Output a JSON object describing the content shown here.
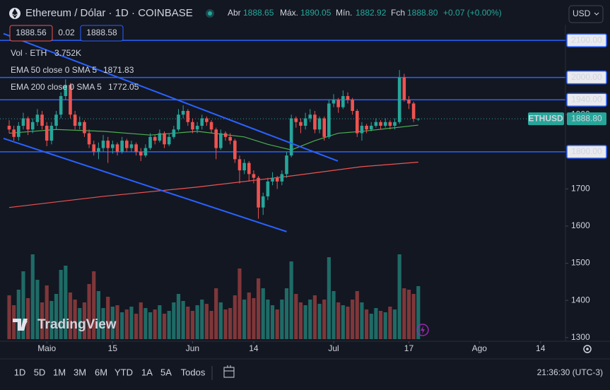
{
  "header": {
    "title": "Ethereum / Dólar · 1D · COINBASE",
    "open_label": "Abr",
    "high_label": "Máx.",
    "low_label": "Mín.",
    "close_label": "Fch",
    "close_value": "1888.80",
    "change": "+0.07 (+0.00%)",
    "currency": "USD",
    "sell": 1888.56,
    "spread": 0.02,
    "buy": 1888.58
  },
  "toolbar": {
    "ranges": [
      "1D",
      "5D",
      "1M",
      "3M",
      "6M",
      "YTD",
      "1A",
      "5A",
      "Todos"
    ],
    "time": "21:36:30 (UTC-3)"
  },
  "brand": "TradingView",
  "chart_data": {
    "type": "candlestick",
    "symbol": "ETHUSD",
    "last_label": "1888.80",
    "up_color": "#26a69a",
    "down_color": "#ef5350",
    "xlim": [
      -1.2,
      118.3
    ],
    "xticks": [
      {
        "value": 8,
        "label": "Maio"
      },
      {
        "value": 22,
        "label": "15"
      },
      {
        "value": 39,
        "label": "Jun"
      },
      {
        "value": 52,
        "label": "14"
      },
      {
        "value": 69,
        "label": "Jul"
      },
      {
        "value": 85,
        "label": "17"
      },
      {
        "value": 100,
        "label": "Ago"
      },
      {
        "value": 113,
        "label": "14"
      }
    ],
    "ylim": [
      1290,
      2142
    ],
    "yticks": [
      1300,
      1400,
      1500,
      1600,
      1700,
      1800,
      1900,
      2000,
      2100
    ],
    "grid": false,
    "ohlc": [
      [
        1870,
        1885,
        1850,
        1860
      ],
      [
        1860,
        1870,
        1830,
        1840
      ],
      [
        1840,
        1880,
        1830,
        1870
      ],
      [
        1870,
        1905,
        1860,
        1890
      ],
      [
        1890,
        1895,
        1845,
        1860
      ],
      [
        1860,
        1890,
        1850,
        1880
      ],
      [
        1880,
        1915,
        1870,
        1900
      ],
      [
        1900,
        1910,
        1860,
        1870
      ],
      [
        1870,
        1880,
        1815,
        1830
      ],
      [
        1830,
        1880,
        1820,
        1870
      ],
      [
        1870,
        1910,
        1860,
        1900
      ],
      [
        1900,
        1960,
        1890,
        1950
      ],
      [
        1950,
        1995,
        1940,
        1980
      ],
      [
        1980,
        1985,
        1890,
        1900
      ],
      [
        1900,
        1910,
        1860,
        1870
      ],
      [
        1870,
        1895,
        1860,
        1880
      ],
      [
        1880,
        1885,
        1840,
        1850
      ],
      [
        1850,
        1860,
        1810,
        1820
      ],
      [
        1820,
        1830,
        1790,
        1800
      ],
      [
        1800,
        1825,
        1780,
        1810
      ],
      [
        1810,
        1845,
        1800,
        1830
      ],
      [
        1830,
        1840,
        1770,
        1810
      ],
      [
        1810,
        1830,
        1795,
        1820
      ],
      [
        1820,
        1825,
        1790,
        1800
      ],
      [
        1800,
        1840,
        1795,
        1830
      ],
      [
        1830,
        1835,
        1800,
        1810
      ],
      [
        1810,
        1830,
        1800,
        1820
      ],
      [
        1820,
        1825,
        1790,
        1800
      ],
      [
        1800,
        1810,
        1775,
        1790
      ],
      [
        1790,
        1820,
        1785,
        1810
      ],
      [
        1810,
        1850,
        1805,
        1840
      ],
      [
        1840,
        1845,
        1820,
        1830
      ],
      [
        1830,
        1860,
        1825,
        1850
      ],
      [
        1850,
        1855,
        1810,
        1820
      ],
      [
        1820,
        1850,
        1815,
        1840
      ],
      [
        1840,
        1870,
        1835,
        1860
      ],
      [
        1860,
        1915,
        1855,
        1900
      ],
      [
        1900,
        1925,
        1890,
        1910
      ],
      [
        1910,
        1915,
        1870,
        1880
      ],
      [
        1880,
        1890,
        1850,
        1860
      ],
      [
        1860,
        1880,
        1850,
        1870
      ],
      [
        1870,
        1900,
        1860,
        1890
      ],
      [
        1890,
        1895,
        1870,
        1880
      ],
      [
        1880,
        1885,
        1850,
        1860
      ],
      [
        1860,
        1865,
        1780,
        1810
      ],
      [
        1810,
        1860,
        1805,
        1850
      ],
      [
        1850,
        1855,
        1830,
        1840
      ],
      [
        1840,
        1850,
        1820,
        1830
      ],
      [
        1830,
        1835,
        1770,
        1780
      ],
      [
        1780,
        1790,
        1715,
        1750
      ],
      [
        1750,
        1780,
        1740,
        1770
      ],
      [
        1770,
        1775,
        1720,
        1740
      ],
      [
        1740,
        1750,
        1715,
        1730
      ],
      [
        1730,
        1735,
        1620,
        1650
      ],
      [
        1650,
        1690,
        1630,
        1680
      ],
      [
        1680,
        1730,
        1670,
        1720
      ],
      [
        1720,
        1745,
        1710,
        1730
      ],
      [
        1730,
        1735,
        1700,
        1720
      ],
      [
        1720,
        1750,
        1710,
        1740
      ],
      [
        1740,
        1800,
        1730,
        1790
      ],
      [
        1790,
        1900,
        1785,
        1890
      ],
      [
        1890,
        1895,
        1865,
        1880
      ],
      [
        1880,
        1890,
        1850,
        1870
      ],
      [
        1870,
        1905,
        1860,
        1890
      ],
      [
        1890,
        1915,
        1880,
        1900
      ],
      [
        1900,
        1910,
        1850,
        1860
      ],
      [
        1860,
        1895,
        1850,
        1890
      ],
      [
        1890,
        1895,
        1830,
        1840
      ],
      [
        1840,
        1940,
        1835,
        1930
      ],
      [
        1930,
        1955,
        1920,
        1940
      ],
      [
        1940,
        1945,
        1905,
        1920
      ],
      [
        1920,
        1965,
        1915,
        1950
      ],
      [
        1950,
        1960,
        1930,
        1940
      ],
      [
        1940,
        1945,
        1900,
        1910
      ],
      [
        1910,
        1915,
        1840,
        1850
      ],
      [
        1850,
        1880,
        1830,
        1870
      ],
      [
        1870,
        1875,
        1850,
        1860
      ],
      [
        1860,
        1880,
        1855,
        1870
      ],
      [
        1870,
        1890,
        1865,
        1880
      ],
      [
        1880,
        1885,
        1860,
        1870
      ],
      [
        1870,
        1890,
        1865,
        1880
      ],
      [
        1880,
        1885,
        1860,
        1870
      ],
      [
        1870,
        1890,
        1860,
        1880
      ],
      [
        1880,
        2020,
        1875,
        2000
      ],
      [
        2000,
        2010,
        1935,
        1940
      ],
      [
        1940,
        1950,
        1915,
        1930
      ],
      [
        1930,
        1935,
        1880,
        1888.73
      ],
      [
        1888.65,
        1890.05,
        1882.92,
        1888.8
      ]
    ],
    "volume": {
      "name": "Vol · ETH",
      "value_label": "3.752K",
      "lim": [
        0,
        8
      ],
      "up_color": "#1f6b66",
      "down_color": "#7f3739",
      "values": [
        3.1,
        2.4,
        3.5,
        4.8,
        2.9,
        6.0,
        4.2,
        2.6,
        3.8,
        2.7,
        3.2,
        4.9,
        5.2,
        3.3,
        2.8,
        2.2,
        2.6,
        3.9,
        4.8,
        3.4,
        2.2,
        3.0,
        2.3,
        2.4,
        1.9,
        2.1,
        2.3,
        1.8,
        2.6,
        2.2,
        1.9,
        2.1,
        2.4,
        1.8,
        2.0,
        2.6,
        3.2,
        2.7,
        2.3,
        2.0,
        2.4,
        2.8,
        2.5,
        2.0,
        3.6,
        2.6,
        2.1,
        2.2,
        3.1,
        5.0,
        2.8,
        3.3,
        2.9,
        4.3,
        3.6,
        2.8,
        2.4,
        2.1,
        2.8,
        3.6,
        5.5,
        3.2,
        2.6,
        2.4,
        2.8,
        3.1,
        2.5,
        2.8,
        5.8,
        3.4,
        2.6,
        2.4,
        2.3,
        2.8,
        3.4,
        2.6,
        2.1,
        1.8,
        2.2,
        2.0,
        1.9,
        2.3,
        2.1,
        6.0,
        3.6,
        3.5,
        3.2,
        3.752
      ]
    },
    "series": [
      {
        "name": "EMA 50 close 0 SMA 5",
        "color": "#4caf50",
        "x": [
          0,
          10,
          20,
          30,
          40,
          50,
          55,
          60,
          65,
          70,
          75,
          80,
          87
        ],
        "values": [
          1850,
          1860,
          1855,
          1845,
          1855,
          1840,
          1820,
          1805,
          1830,
          1850,
          1855,
          1862,
          1871.83
        ]
      },
      {
        "name": "EMA 200 close 0 SMA 5",
        "color": "#ef5350",
        "x": [
          0,
          20,
          40,
          60,
          75,
          87
        ],
        "values": [
          1650,
          1680,
          1705,
          1735,
          1760,
          1772.05
        ]
      }
    ],
    "hlines": {
      "color": "#2962ff",
      "values": [
        {
          "value": 2100,
          "label": "2100.00"
        },
        {
          "value": 2000,
          "label": "2000.00"
        },
        {
          "value": 1940,
          "label": "1940.00"
        },
        {
          "value": 1800,
          "label": "1800.00"
        }
      ]
    },
    "trendlines": [
      {
        "x": [
          -1.2,
          69.9
        ],
        "values": [
          2118,
          1775
        ]
      },
      {
        "x": [
          -1.2,
          59
        ],
        "values": [
          1836,
          1585
        ]
      }
    ]
  }
}
